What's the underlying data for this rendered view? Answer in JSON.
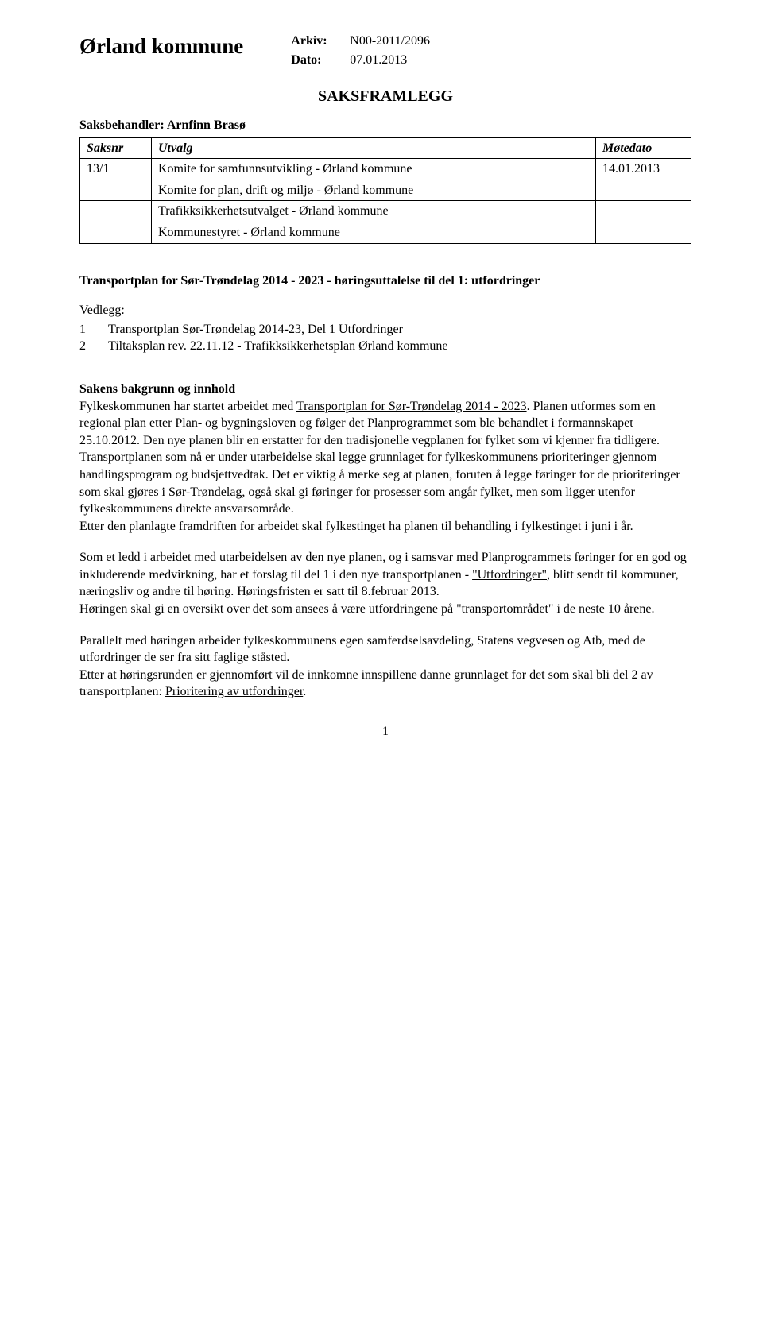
{
  "header": {
    "municipality": "Ørland kommune",
    "arkiv_label": "Arkiv:",
    "arkiv_value": "N00-2011/2096",
    "dato_label": "Dato:",
    "dato_value": "07.01.2013"
  },
  "framlegg_title": "SAKSFRAMLEGG",
  "saksbehandler": "Saksbehandler: Arnfinn Brasø",
  "table": {
    "headers": {
      "saksnr": "Saksnr",
      "utvalg": "Utvalg",
      "motedato": "Møtedato"
    },
    "rows": [
      {
        "saksnr": "13/1",
        "utvalg": "Komite for samfunnsutvikling - Ørland kommune",
        "motedato": "14.01.2013"
      },
      {
        "saksnr": "",
        "utvalg": "Komite for plan, drift og miljø - Ørland kommune",
        "motedato": ""
      },
      {
        "saksnr": "",
        "utvalg": "Trafikksikkerhetsutvalget - Ørland kommune",
        "motedato": ""
      },
      {
        "saksnr": "",
        "utvalg": "Kommunestyret - Ørland kommune",
        "motedato": ""
      }
    ]
  },
  "case_title": "Transportplan for Sør-Trøndelag 2014 - 2023  -  høringsuttalelse til  del 1: utfordringer",
  "vedlegg": {
    "label": "Vedlegg:",
    "items": [
      {
        "num": "1",
        "text": "Transportplan Sør-Trøndelag 2014-23, Del 1 Utfordringer"
      },
      {
        "num": "2",
        "text": "Tiltaksplan rev. 22.11.12 - Trafikksikkerhetsplan Ørland kommune"
      }
    ]
  },
  "sections": {
    "heading": "Sakens bakgrunn og innhold",
    "p1_a": "Fylkeskommunen har startet arbeidet med ",
    "p1_u1": "Transportplan for Sør-Trøndelag 2014 - 2023",
    "p1_b": ". Planen utformes som en regional plan etter Plan- og bygningsloven og følger det Planprogrammet som ble behandlet i formannskapet 25.10.2012. Den nye planen blir en erstatter for den tradisjonelle vegplanen for fylket som vi kjenner fra tidligere. Transportplanen som nå er under utarbeidelse skal legge grunnlaget for fylkeskommunens prioriteringer gjennom handlingsprogram og budsjettvedtak. Det er viktig å merke seg at planen, foruten å legge føringer for de prioriteringer som skal gjøres i Sør-Trøndelag, også skal gi føringer for prosesser som angår fylket, men som ligger utenfor fylkeskommunens direkte ansvarsområde.",
    "p1_c": "Etter den planlagte framdriften for arbeidet skal fylkestinget ha planen til behandling i fylkestinget i juni i år.",
    "p2_a": "Som et ledd i arbeidet med utarbeidelsen av den nye planen, og i samsvar med Planprogrammets føringer for en god og inkluderende medvirkning, har et forslag til del 1 i den nye transportplanen - ",
    "p2_u1": "\"Utfordringer\"",
    "p2_b": ", blitt sendt til kommuner, næringsliv og andre til høring. Høringsfristen er satt til 8.februar 2013.",
    "p2_c": "Høringen skal gi en oversikt over det som ansees å være utfordringene på \"transportområdet\" i de neste 10 årene.",
    "p3_a": "Parallelt med høringen arbeider fylkeskommunens egen samferdselsavdeling, Statens vegvesen og Atb, med de utfordringer de ser fra sitt faglige ståsted.",
    "p3_b": "Etter at høringsrunden er gjennomført vil de innkomne innspillene danne grunnlaget for det som skal bli del 2 av transportplanen: ",
    "p3_u1": "Prioritering av utfordringer",
    "p3_c": "."
  },
  "page_number": "1"
}
